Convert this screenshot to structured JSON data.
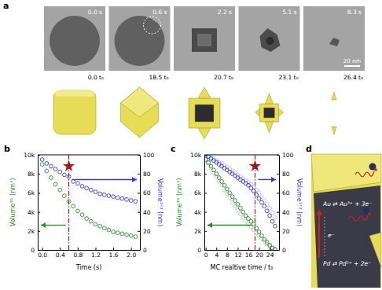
{
  "chart_data": [
    {
      "type": "scatter",
      "title": "b",
      "xlabel": "Time (s)",
      "ylabel": "Volume³ᴰ (nm³)",
      "y2label": "Volume¹ᐟ³ (nm)",
      "x": [
        0.0,
        0.1,
        0.2,
        0.3,
        0.4,
        0.5,
        0.6,
        0.7,
        0.8,
        0.9,
        1.0,
        1.1,
        1.2,
        1.3,
        1.4,
        1.5,
        1.6,
        1.7,
        1.8,
        1.9,
        2.0,
        2.1
      ],
      "xlim": [
        -0.1,
        2.2
      ],
      "xticks": [
        {
          "value": 0,
          "label": "0.0"
        },
        0.4,
        0.8,
        1.2,
        1.6,
        {
          "value": 2,
          "label": "2.0"
        }
      ],
      "ylim": [
        0,
        10000
      ],
      "yticks": [
        0,
        {
          "value": 2000,
          "label": "2k"
        },
        {
          "value": 4000,
          "label": "4k"
        },
        {
          "value": 6000,
          "label": "6k"
        },
        {
          "value": 8000,
          "label": "8k"
        },
        {
          "value": 10000,
          "label": "10k"
        }
      ],
      "y2lim": [
        0,
        100
      ],
      "y2ticks": [
        0,
        20,
        40,
        60,
        80,
        100
      ],
      "series": [
        {
          "color": "#2e8b2e",
          "marker": "circle",
          "values": [
            9000,
            8300,
            7600,
            6900,
            6300,
            5700,
            5100,
            4600,
            4100,
            3700,
            3300,
            3000,
            2700,
            2500,
            2300,
            2100,
            1900,
            1800,
            1700,
            1600,
            1500,
            1400
          ]
        },
        {
          "color": "#3a3ad0",
          "marker": "circle",
          "axis": "y2",
          "values": [
            95,
            91,
            88,
            85,
            82,
            79,
            77,
            72,
            70,
            67,
            65,
            63,
            61,
            59,
            58,
            57,
            56,
            55,
            54,
            53,
            52,
            51
          ]
        }
      ],
      "highlight": {
        "x": 0.6,
        "y": 8800
      }
    },
    {
      "type": "scatter",
      "title": "c",
      "xlabel": "MC realtive time / t₀",
      "ylabel": "Volume³ᴰ (nm³)",
      "y2label": "Volume¹ᐟ³ (nm)",
      "x": [
        0,
        1,
        2,
        3,
        4,
        5,
        6,
        7,
        8,
        9,
        10,
        11,
        12,
        13,
        14,
        15,
        16,
        17,
        18,
        19,
        20,
        21,
        22,
        23,
        24,
        25,
        26
      ],
      "xlim": [
        -0.5,
        27.5
      ],
      "xticks": [
        0,
        4,
        8,
        12,
        16,
        20,
        24
      ],
      "ylim": [
        0,
        10000
      ],
      "yticks": [
        0,
        {
          "value": 2000,
          "label": "2k"
        },
        {
          "value": 4000,
          "label": "4k"
        },
        {
          "value": 6000,
          "label": "6k"
        },
        {
          "value": 8000,
          "label": "8k"
        },
        {
          "value": 10000,
          "label": "10k"
        }
      ],
      "y2lim": [
        0,
        100
      ],
      "y2ticks": [
        0,
        20,
        40,
        60,
        80,
        100
      ],
      "series": [
        {
          "color": "#b9c9b9",
          "marker": "circle",
          "values": [
            9500,
            9100,
            8600,
            8100,
            7700,
            7200,
            6800,
            6300,
            5900,
            5500,
            5000,
            4600,
            4200,
            3800,
            3400,
            3000,
            2700,
            2400,
            2100,
            1800,
            1500,
            1200,
            900,
            600,
            400,
            200,
            100
          ]
        },
        {
          "color": "#bcbce6",
          "marker": "circle",
          "axis": "y2",
          "values": [
            100,
            99,
            97,
            96,
            94,
            92,
            91,
            89,
            87,
            85,
            83,
            81,
            79,
            77,
            75,
            73,
            71,
            69,
            66,
            63,
            60,
            56,
            52,
            48,
            44,
            39,
            34
          ]
        },
        {
          "color": "#2e8b2e",
          "marker": "circle",
          "values": [
            9500,
            9200,
            8800,
            8400,
            8000,
            7600,
            7200,
            6800,
            6400,
            6000,
            5600,
            5200,
            4800,
            4400,
            4000,
            3600,
            3300,
            3000,
            2700,
            2300,
            1900,
            1500,
            1100,
            800,
            500,
            200,
            50
          ]
        },
        {
          "color": "#3a3ad0",
          "marker": "circle",
          "axis": "y2",
          "values": [
            100,
            98,
            96,
            94,
            92,
            90,
            88,
            86,
            84,
            82,
            80,
            78,
            76,
            74,
            72,
            70,
            68,
            65,
            62,
            58,
            54,
            50,
            46,
            41,
            36,
            30,
            25
          ]
        }
      ],
      "highlight": {
        "x": 18.5,
        "y": 8800
      }
    }
  ],
  "panel_a": {
    "label": "a",
    "frames": [
      {
        "time": "0.0 s",
        "mc_time": "0.0 t₀"
      },
      {
        "time": "0.6 s",
        "mc_time": "18.5 t₀"
      },
      {
        "time": "2.2 s",
        "mc_time": "20.7 t₀"
      },
      {
        "time": "5.1 s",
        "mc_time": "23.1 t₀"
      },
      {
        "time": "8.3 s",
        "mc_time": "26.4 t₀"
      }
    ],
    "scale_bar": "20 nm"
  },
  "panel_d": {
    "label": "d",
    "equations": [
      "Au ⇄ Au³⁺ + 3e⁻",
      "Pd ⇄ Pd²⁺ + 2e⁻"
    ],
    "electron": "e⁻"
  }
}
